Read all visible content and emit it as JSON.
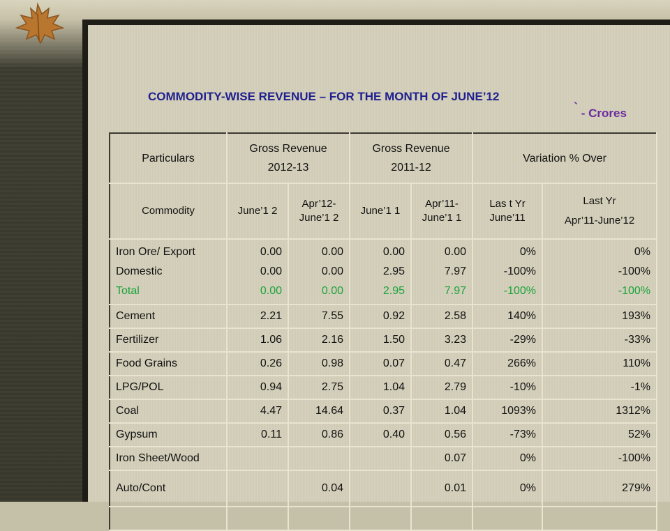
{
  "slide": {
    "title": "COMMODITY-WISE REVENUE – FOR THE MONTH OF JUNE’12",
    "unit_symbol": "`",
    "unit_text": " - Crores"
  },
  "headers": {
    "particulars": "Particulars",
    "gross_revenue_1": "Gross Revenue",
    "year_1": "2012-13",
    "gross_revenue_2": "Gross Revenue",
    "year_2": "2011-12",
    "variation": "Variation  % Over",
    "commodity": "Commodity",
    "june_12": "June’1 2",
    "apr_june_12": "Apr’12- June’1 2",
    "june_11": "June’1 1",
    "apr_june_11": "Apr’11- June’1 1",
    "last_yr_june": "Las t Yr June’11",
    "last_yr": "Last Yr",
    "last_yr_range": "Apr’11-June’12"
  },
  "iron_ore": {
    "export_label": "Iron Ore/ Export",
    "domestic_label": "Domestic",
    "total_label": "Total",
    "june12": [
      "0.00",
      "0.00",
      "0.00"
    ],
    "apr_june12": [
      "0.00",
      "0.00",
      "0.00"
    ],
    "june11": [
      "0.00",
      "2.95",
      "2.95"
    ],
    "apr_june11": [
      "0.00",
      "7.97",
      "7.97"
    ],
    "var_june": [
      "0%",
      "-100%",
      "-100%"
    ],
    "var_apr_june": [
      "0%",
      "-100%",
      "-100%"
    ]
  },
  "rows": [
    {
      "name": "Cement",
      "june12": "2.21",
      "apr_june12": "7.55",
      "june11": "0.92",
      "apr_june11": "2.58",
      "var_june": "140%",
      "var_apr_june": "193%"
    },
    {
      "name": "Fertilizer",
      "june12": "1.06",
      "apr_june12": "2.16",
      "june11": "1.50",
      "apr_june11": "3.23",
      "var_june": "-29%",
      "var_apr_june": "-33%"
    },
    {
      "name": "Food Grains",
      "june12": "0.26",
      "apr_june12": "0.98",
      "june11": "0.07",
      "apr_june11": "0.47",
      "var_june": "266%",
      "var_apr_june": "110%"
    },
    {
      "name": "LPG/POL",
      "june12": "0.94",
      "apr_june12": "2.75",
      "june11": "1.04",
      "apr_june11": "2.79",
      "var_june": "-10%",
      "var_apr_june": "-1%"
    },
    {
      "name": "Coal",
      "june12": "4.47",
      "apr_june12": "14.64",
      "june11": "0.37",
      "apr_june11": "1.04",
      "var_june": "1093%",
      "var_apr_june": "1312%"
    },
    {
      "name": "Gypsum",
      "june12": "0.11",
      "apr_june12": "0.86",
      "june11": "0.40",
      "apr_june11": "0.56",
      "var_june": "-73%",
      "var_apr_june": "52%"
    },
    {
      "name": "Iron Sheet/Wood",
      "june12": "",
      "apr_june12": "",
      "june11": "",
      "apr_june11": "0.07",
      "var_june": "0%",
      "var_apr_june": "-100%"
    },
    {
      "name": "Auto/Cont",
      "june12": "",
      "apr_june12": "0.04",
      "june11": "",
      "apr_june11": "0.01",
      "var_june": "0%",
      "var_apr_june": "279%"
    }
  ],
  "colors": {
    "title": "#1f1f8f",
    "unit": "#6a2aa0",
    "total_row": "#1aa33a",
    "frame": "#1e1e16",
    "slide_bg": "#d3cfba"
  },
  "icons": {
    "decoration": "maple-leaf-icon"
  }
}
